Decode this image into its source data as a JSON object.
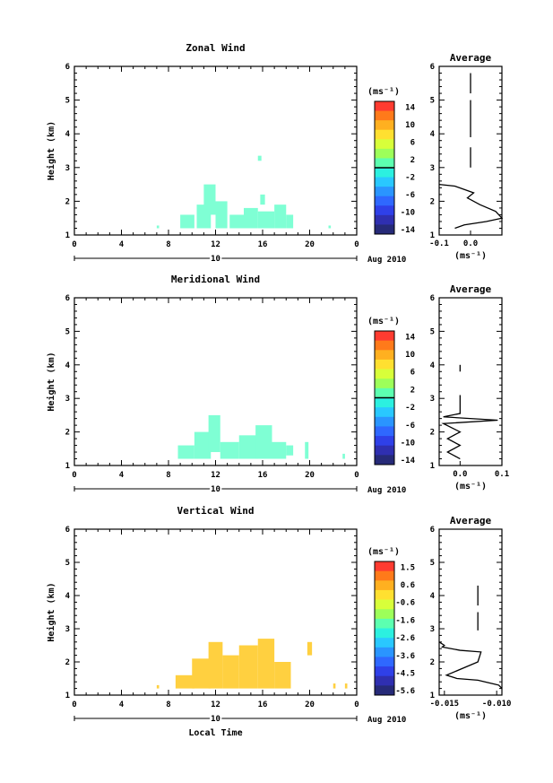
{
  "chart_data": [
    {
      "type": "heatmap",
      "title": "Zonal Wind",
      "ylabel": "Height (km)",
      "xlabel": "",
      "date_label": "Aug 2010",
      "day_label": "10",
      "xlim": [
        0,
        24
      ],
      "ylim": [
        1,
        6
      ],
      "xticks": [
        "0",
        "4",
        "8",
        "12",
        "16",
        "20",
        "0"
      ],
      "yticks": [
        "1",
        "2",
        "3",
        "4",
        "5",
        "6"
      ],
      "colorbar": {
        "unit": "(ms⁻¹)",
        "labels": [
          "14",
          "10",
          "6",
          "2",
          "-2",
          "-6",
          "-10",
          "-14"
        ],
        "zero_line_label": "0"
      },
      "cells": [
        {
          "x": 7.0,
          "y": 1.2,
          "w": 0.2,
          "h": 0.08
        },
        {
          "x": 9.0,
          "y": 1.2,
          "w": 1.2,
          "h": 0.4
        },
        {
          "x": 10.4,
          "y": 1.2,
          "w": 1.2,
          "h": 0.7
        },
        {
          "x": 11.0,
          "y": 1.6,
          "w": 1.0,
          "h": 0.9
        },
        {
          "x": 12.0,
          "y": 1.2,
          "w": 1.0,
          "h": 0.8
        },
        {
          "x": 13.2,
          "y": 1.2,
          "w": 1.2,
          "h": 0.4
        },
        {
          "x": 14.4,
          "y": 1.2,
          "w": 1.2,
          "h": 0.6
        },
        {
          "x": 15.6,
          "y": 1.2,
          "w": 1.4,
          "h": 0.5
        },
        {
          "x": 17.0,
          "y": 1.2,
          "w": 1.0,
          "h": 0.7
        },
        {
          "x": 15.8,
          "y": 1.9,
          "w": 0.4,
          "h": 0.3
        },
        {
          "x": 18.0,
          "y": 1.2,
          "w": 0.6,
          "h": 0.4
        },
        {
          "x": 15.6,
          "y": 3.2,
          "w": 0.3,
          "h": 0.15
        },
        {
          "x": 21.6,
          "y": 1.2,
          "w": 0.2,
          "h": 0.08
        }
      ],
      "cell_color": "#7fffd4",
      "average_profile": {
        "title": "Average",
        "xlabel": "(ms⁻¹)",
        "xticks": [
          "-0.1",
          "0.0"
        ],
        "xlim": [
          -0.1,
          0.1
        ],
        "ylim": [
          1,
          6
        ],
        "yticks": [
          "1",
          "2",
          "3",
          "4",
          "5",
          "6"
        ],
        "line": {
          "x": [
            -0.1,
            -0.05,
            -0.02,
            0.01,
            -0.01,
            0.03,
            0.08,
            0.1,
            0.05,
            -0.02,
            -0.05
          ],
          "y": [
            2.5,
            2.45,
            2.35,
            2.25,
            2.1,
            1.9,
            1.7,
            1.5,
            1.4,
            1.3,
            1.2
          ]
        },
        "segments": [
          {
            "x": 0.0,
            "y": [
              3.0,
              3.6
            ]
          },
          {
            "x": 0.0,
            "y": [
              3.9,
              5.0
            ]
          },
          {
            "x": 0.0,
            "y": [
              5.2,
              5.8
            ]
          }
        ]
      }
    },
    {
      "type": "heatmap",
      "title": "Meridional Wind",
      "ylabel": "Height (km)",
      "xlabel": "",
      "date_label": "Aug 2010",
      "day_label": "10",
      "xlim": [
        0,
        24
      ],
      "ylim": [
        1,
        6
      ],
      "xticks": [
        "0",
        "4",
        "8",
        "12",
        "16",
        "20",
        "0"
      ],
      "yticks": [
        "1",
        "2",
        "3",
        "4",
        "5",
        "6"
      ],
      "colorbar": {
        "unit": "(ms⁻¹)",
        "labels": [
          "14",
          "10",
          "6",
          "2",
          "-2",
          "-6",
          "-10",
          "-14"
        ],
        "zero_line_label": "0"
      },
      "cells": [
        {
          "x": 8.8,
          "y": 1.2,
          "w": 1.4,
          "h": 0.4
        },
        {
          "x": 10.2,
          "y": 1.2,
          "w": 1.4,
          "h": 0.8
        },
        {
          "x": 11.4,
          "y": 1.4,
          "w": 1.0,
          "h": 1.1
        },
        {
          "x": 12.4,
          "y": 1.2,
          "w": 1.6,
          "h": 0.5
        },
        {
          "x": 14.0,
          "y": 1.2,
          "w": 1.6,
          "h": 0.7
        },
        {
          "x": 15.4,
          "y": 1.2,
          "w": 1.4,
          "h": 1.0
        },
        {
          "x": 16.8,
          "y": 1.2,
          "w": 1.2,
          "h": 0.5
        },
        {
          "x": 18.0,
          "y": 1.3,
          "w": 0.6,
          "h": 0.3
        },
        {
          "x": 19.6,
          "y": 1.2,
          "w": 0.3,
          "h": 0.5
        },
        {
          "x": 22.8,
          "y": 1.2,
          "w": 0.2,
          "h": 0.15
        }
      ],
      "cell_color": "#7fffd4",
      "average_profile": {
        "title": "Average",
        "xlabel": "(ms⁻¹)",
        "xticks": [
          "0.0",
          "0.1"
        ],
        "xlim": [
          -0.05,
          0.1
        ],
        "ylim": [
          1,
          6
        ],
        "yticks": [
          "1",
          "2",
          "3",
          "4",
          "5",
          "6"
        ],
        "line": {
          "x": [
            0.0,
            0.0,
            -0.04,
            0.09,
            -0.04,
            0.0,
            -0.03,
            0.0,
            -0.03,
            0.0
          ],
          "y": [
            3.1,
            2.55,
            2.45,
            2.35,
            2.25,
            2.0,
            1.8,
            1.6,
            1.4,
            1.2
          ]
        },
        "segments": [
          {
            "x": 0.0,
            "y": [
              3.8,
              4.0
            ]
          }
        ]
      }
    },
    {
      "type": "heatmap",
      "title": "Vertical Wind",
      "ylabel": "Height (km)",
      "xlabel": "Local Time",
      "date_label": "Aug 2010",
      "day_label": "10",
      "xlim": [
        0,
        24
      ],
      "ylim": [
        1,
        6
      ],
      "xticks": [
        "0",
        "4",
        "8",
        "12",
        "16",
        "20",
        "0"
      ],
      "yticks": [
        "1",
        "2",
        "3",
        "4",
        "5",
        "6"
      ],
      "colorbar": {
        "unit": "(ms⁻¹)",
        "labels": [
          "1.5",
          "0.6",
          "-0.6",
          "-1.6",
          "-2.6",
          "-3.6",
          "-4.5",
          "-5.6"
        ],
        "zero_line_label": ""
      },
      "cells": [
        {
          "x": 7.0,
          "y": 1.2,
          "w": 0.2,
          "h": 0.1
        },
        {
          "x": 8.6,
          "y": 1.2,
          "w": 1.6,
          "h": 0.4
        },
        {
          "x": 10.0,
          "y": 1.2,
          "w": 1.6,
          "h": 0.9
        },
        {
          "x": 11.4,
          "y": 1.2,
          "w": 1.2,
          "h": 1.4
        },
        {
          "x": 12.6,
          "y": 1.2,
          "w": 1.4,
          "h": 1.0
        },
        {
          "x": 14.0,
          "y": 1.2,
          "w": 1.6,
          "h": 1.3
        },
        {
          "x": 15.6,
          "y": 1.2,
          "w": 1.4,
          "h": 1.5
        },
        {
          "x": 17.0,
          "y": 1.2,
          "w": 1.4,
          "h": 0.8
        },
        {
          "x": 19.8,
          "y": 2.2,
          "w": 0.4,
          "h": 0.4
        },
        {
          "x": 22.0,
          "y": 1.2,
          "w": 0.2,
          "h": 0.15
        },
        {
          "x": 23.0,
          "y": 1.2,
          "w": 0.2,
          "h": 0.15
        }
      ],
      "cell_color": "#ffd040",
      "average_profile": {
        "title": "Average",
        "xlabel": "(ms⁻¹)",
        "xticks": [
          "-0.015",
          "-0.010"
        ],
        "xlim": [
          -0.0155,
          -0.0095
        ],
        "ylim": [
          1,
          6
        ],
        "yticks": [
          "1",
          "2",
          "3",
          "4",
          "5",
          "6"
        ],
        "line": {
          "x": [
            -0.0155,
            -0.015,
            -0.0152,
            -0.0135,
            -0.0115,
            -0.0118,
            -0.0148,
            -0.0138,
            -0.0118,
            -0.0098,
            -0.0095
          ],
          "y": [
            2.6,
            2.5,
            2.45,
            2.35,
            2.3,
            2.0,
            1.6,
            1.5,
            1.45,
            1.3,
            1.2
          ]
        },
        "segments": [
          {
            "x": -0.0118,
            "y": [
              2.95,
              3.5
            ]
          },
          {
            "x": -0.0118,
            "y": [
              3.7,
              4.3
            ]
          }
        ]
      }
    }
  ]
}
